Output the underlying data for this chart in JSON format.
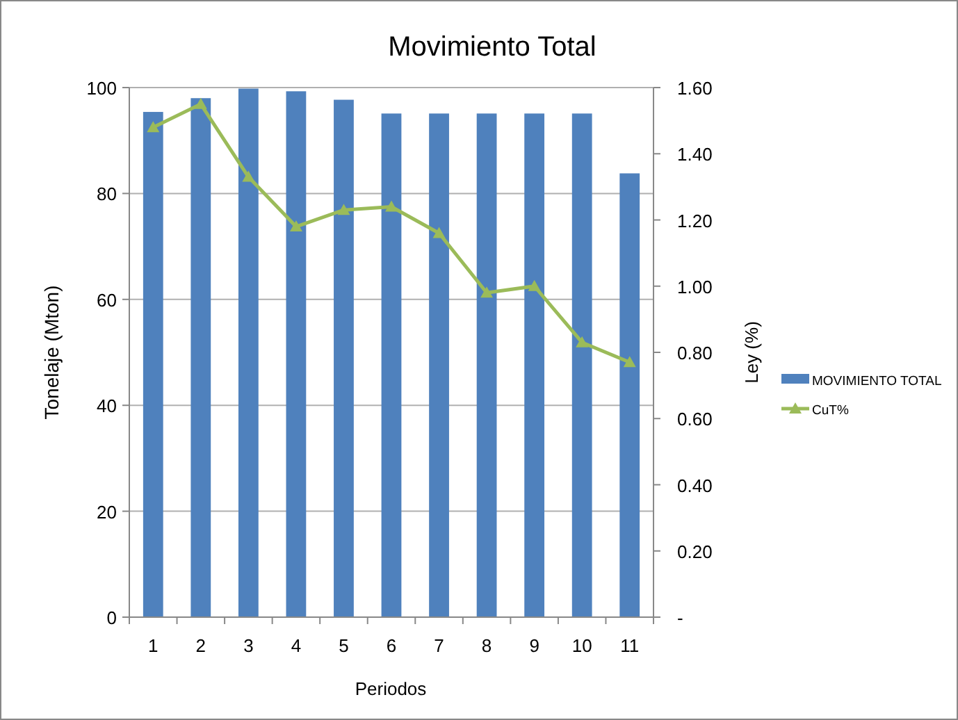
{
  "chart_data": {
    "type": "bar",
    "title": "Movimiento Total",
    "xlabel": "Periodos",
    "ylabel": "Tonelaje (Mton)",
    "y2label": "Ley (%)",
    "categories": [
      "1",
      "2",
      "3",
      "4",
      "5",
      "6",
      "7",
      "8",
      "9",
      "10",
      "11"
    ],
    "series": [
      {
        "name": "MOVIMIENTO TOTAL",
        "color": "#4f81bd",
        "values": [
          95.4,
          98.0,
          99.8,
          99.3,
          97.7,
          95.1,
          95.1,
          95.1,
          95.1,
          95.1,
          83.8
        ]
      },
      {
        "name": "CuT%",
        "type": "line",
        "axis": "y2",
        "color": "#9bbb59",
        "marker": "triangle",
        "values": [
          1.48,
          1.55,
          1.33,
          1.18,
          1.23,
          1.24,
          1.16,
          0.98,
          1.0,
          0.83,
          0.77
        ]
      }
    ],
    "ylim": [
      0,
      100
    ],
    "yticks": [
      0,
      20,
      40,
      60,
      80,
      100
    ],
    "y2lim": [
      0,
      1.6
    ],
    "y2ticks": [
      {
        "value": 0,
        "label": "-"
      },
      {
        "value": 0.2,
        "label": "0.20"
      },
      {
        "value": 0.4,
        "label": "0.40"
      },
      {
        "value": 0.6,
        "label": "0.60"
      },
      {
        "value": 0.8,
        "label": "0.80"
      },
      {
        "value": 1,
        "label": "1.00"
      },
      {
        "value": 1.2,
        "label": "1.20"
      },
      {
        "value": 1.4,
        "label": "1.40"
      },
      {
        "value": 1.6,
        "label": "1.60"
      }
    ],
    "grid": "y",
    "legend": "right"
  }
}
